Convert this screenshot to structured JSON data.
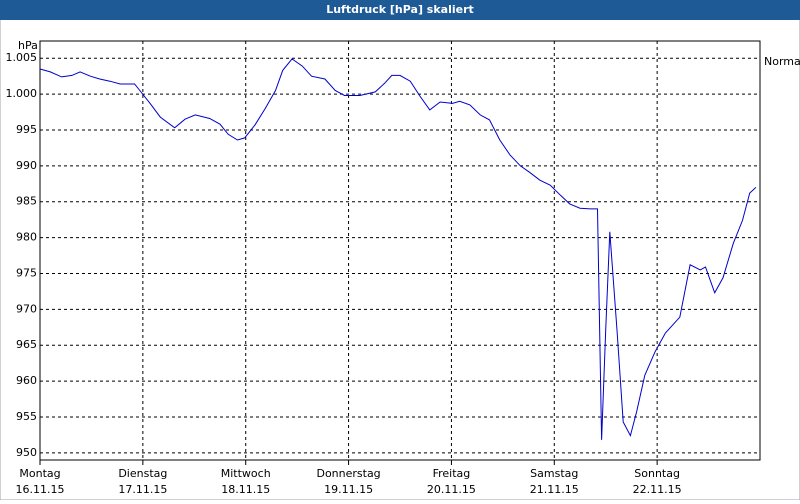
{
  "chart_data": {
    "type": "line",
    "title": "Luftdruck [hPa] skaliert",
    "y_label": "hPa",
    "xlim": [
      0,
      7
    ],
    "xticks": [
      {
        "value": 0,
        "label": "Montag",
        "date": "16.11.15"
      },
      {
        "value": 1,
        "label": "Dienstag",
        "date": "17.11.15"
      },
      {
        "value": 2,
        "label": "Mittwoch",
        "date": "18.11.15"
      },
      {
        "value": 3,
        "label": "Donnerstag",
        "date": "19.11.15"
      },
      {
        "value": 4,
        "label": "Freitag",
        "date": "20.11.15"
      },
      {
        "value": 5,
        "label": "Samstag",
        "date": "21.11.15"
      },
      {
        "value": 6,
        "label": "Sonntag",
        "date": "22.11.15"
      }
    ],
    "ylim": [
      949,
      1007.4
    ],
    "yticks": [
      950,
      955,
      960,
      965,
      970,
      975,
      980,
      985,
      990,
      995,
      {
        "value": 1000,
        "label": "1.000"
      },
      {
        "value": 1005,
        "label": "1.005"
      }
    ],
    "grid": true,
    "legend": "right",
    "series": [
      {
        "name": "Normal",
        "color": "#0000cc",
        "x": [
          0,
          0.1,
          0.21,
          0.31,
          0.39,
          0.49,
          0.58,
          0.68,
          0.78,
          0.92,
          0.97,
          1.07,
          1.17,
          1.31,
          1.41,
          1.51,
          1.65,
          1.75,
          1.83,
          1.92,
          1.99,
          2.09,
          2.19,
          2.29,
          2.36,
          2.45,
          2.55,
          2.64,
          2.77,
          2.87,
          2.96,
          3.11,
          3.26,
          3.35,
          3.42,
          3.5,
          3.6,
          3.69,
          3.79,
          3.89,
          4.01,
          4.08,
          4.18,
          4.28,
          4.37,
          4.47,
          4.57,
          4.67,
          4.76,
          4.86,
          4.96,
          5.06,
          5.15,
          5.25,
          5.35,
          5.42,
          5.46,
          5.5,
          5.54,
          5.61,
          5.67,
          5.74,
          5.8,
          5.88,
          5.98,
          6.08,
          6.22,
          6.32,
          6.42,
          6.47,
          6.56,
          6.64,
          6.74,
          6.83,
          6.9,
          6.96
        ],
        "values": [
          1003.5,
          1003.1,
          1002.4,
          1002.6,
          1003.1,
          1002.5,
          1002.1,
          1001.8,
          1001.4,
          1001.4,
          1000.5,
          998.7,
          996.8,
          995.3,
          996.5,
          997.1,
          996.6,
          995.8,
          994.4,
          993.6,
          993.9,
          995.7,
          998.0,
          1000.5,
          1003.3,
          1004.9,
          1003.9,
          1002.5,
          1002.1,
          1000.5,
          999.8,
          999.8,
          1000.3,
          1001.5,
          1002.6,
          1002.6,
          1001.8,
          999.8,
          997.8,
          998.9,
          998.7,
          999.0,
          998.5,
          997.1,
          996.4,
          993.6,
          991.5,
          990.0,
          989.1,
          988.0,
          987.3,
          985.9,
          984.7,
          984.1,
          984.0,
          984.0,
          951.8,
          967.1,
          980.8,
          967.1,
          954.3,
          952.4,
          955.7,
          960.8,
          964.1,
          966.7,
          968.9,
          976.2,
          975.5,
          975.9,
          972.3,
          974.4,
          979.2,
          982.4,
          986.2,
          987.0
        ]
      }
    ]
  }
}
